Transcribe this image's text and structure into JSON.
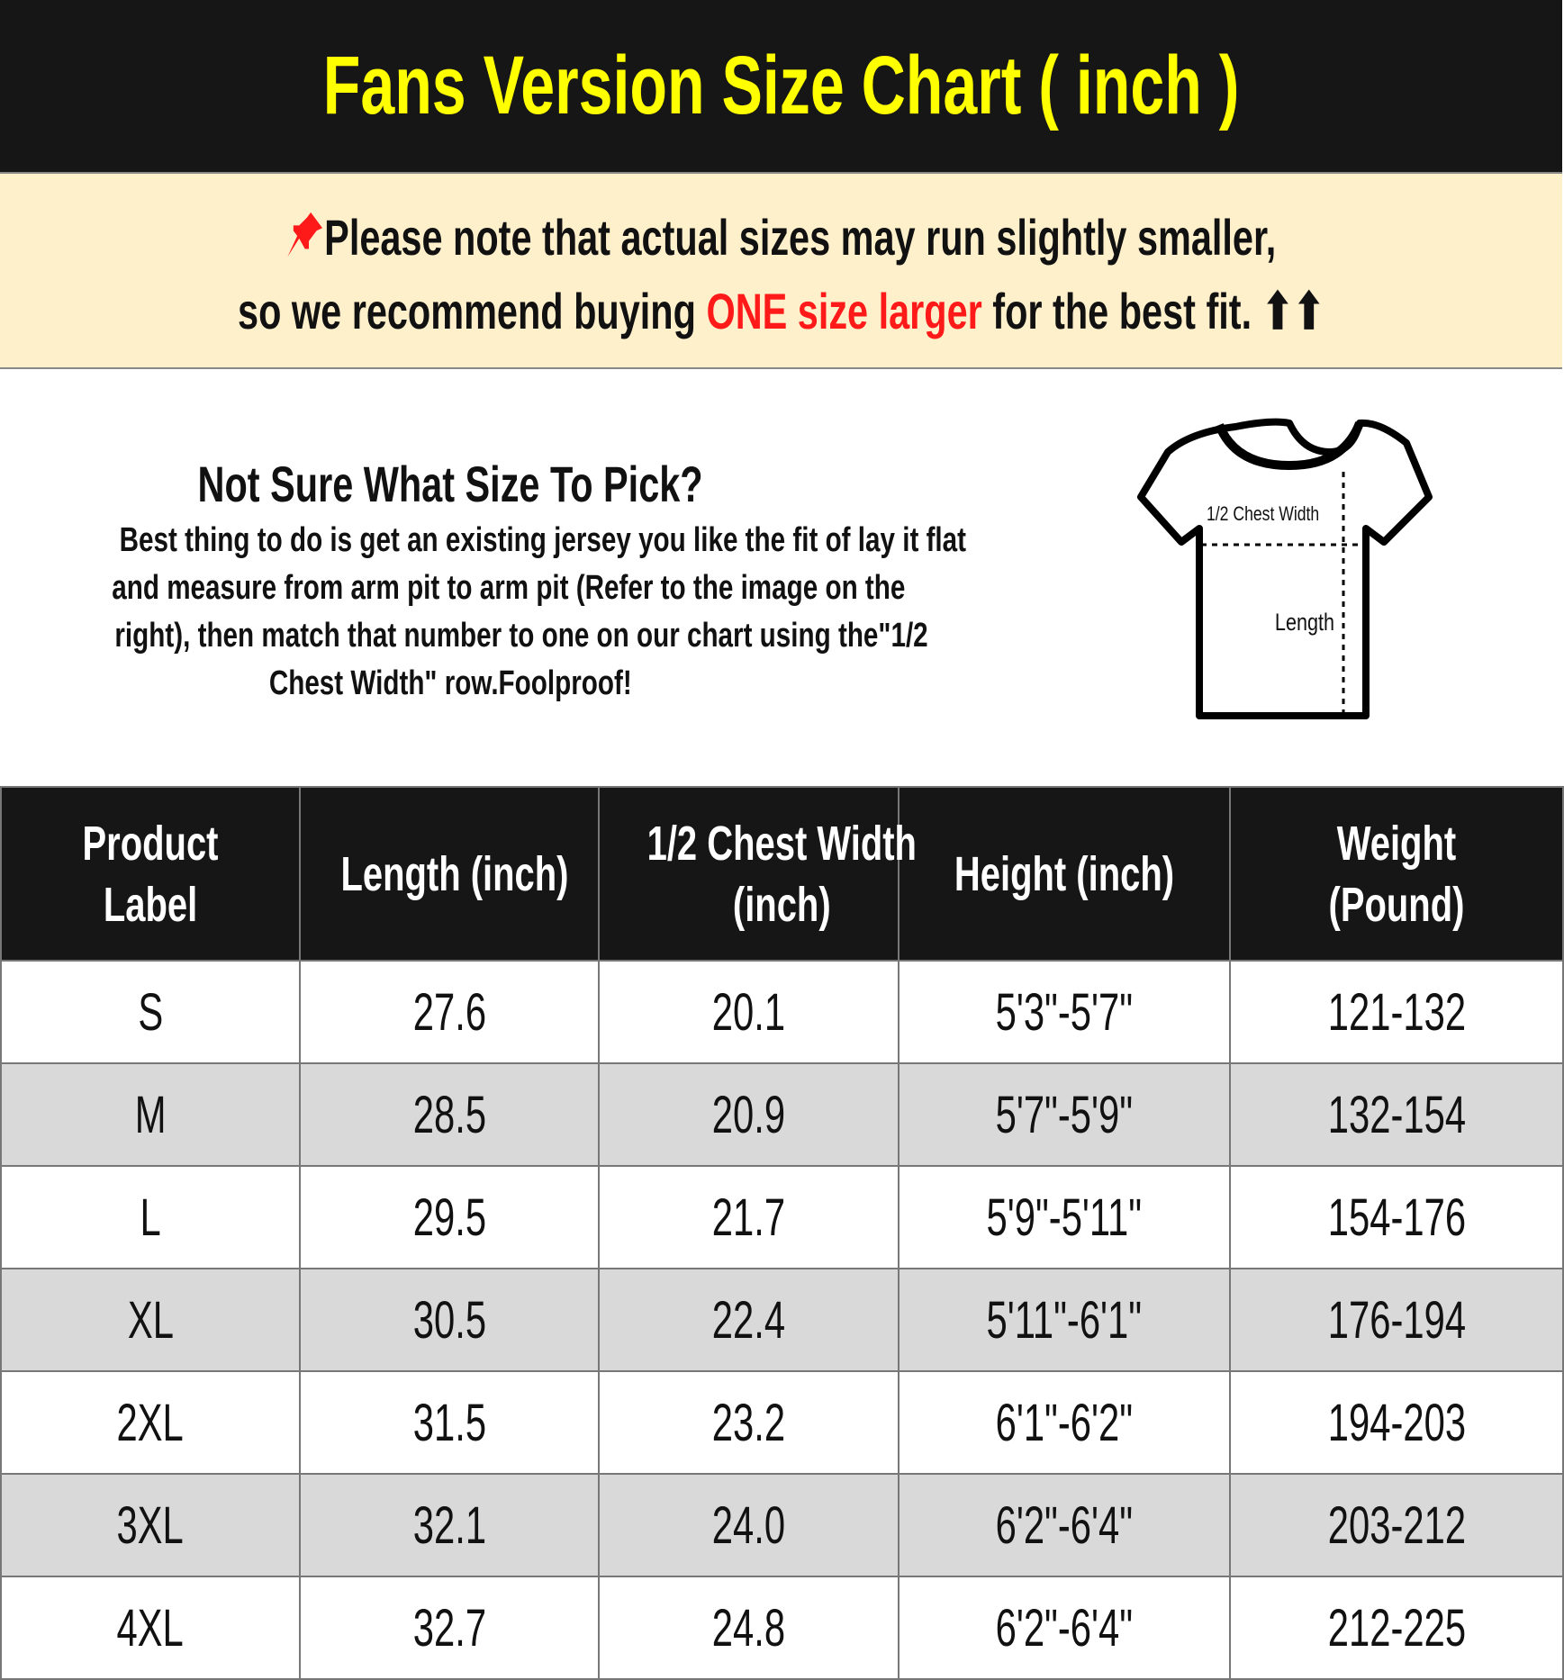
{
  "title": "Fans Version Size Chart ( inch )",
  "notice": {
    "icon": "pushpin-icon",
    "line1": "Please note that actual sizes may run slightly smaller,",
    "line2_before": "so we recommend buying ",
    "line2_highlight": "ONE size larger",
    "line2_after": " for the best fit.",
    "arrows": "⬆⬆",
    "highlight_color": "#ff1a1a"
  },
  "info": {
    "heading": "Not Sure What Size To Pick?",
    "body_lines": [
      "Best thing to do is get an existing jersey you like the fit of lay it flat",
      "and measure from arm pit to arm pit (Refer to the image on the",
      "right), then match that number to one on our chart using the\"1/2",
      "Chest Width\" row.Foolproof!"
    ],
    "diagram": {
      "chest_label": "1/2 Chest Width",
      "length_label": "Length"
    }
  },
  "table": {
    "headers": [
      [
        "Product",
        "Label"
      ],
      [
        "Length (inch)"
      ],
      [
        "1/2 Chest Width",
        "(inch)"
      ],
      [
        "Height (inch)"
      ],
      [
        "Weight",
        "(Pound)"
      ]
    ],
    "rows": [
      [
        "S",
        "27.6",
        "20.1",
        "5'3\"-5'7\"",
        "121-132"
      ],
      [
        "M",
        "28.5",
        "20.9",
        "5'7\"-5'9\"",
        "132-154"
      ],
      [
        "L",
        "29.5",
        "21.7",
        "5'9\"-5'11\"",
        "154-176"
      ],
      [
        "XL",
        "30.5",
        "22.4",
        "5'11\"-6'1\"",
        "176-194"
      ],
      [
        "2XL",
        "31.5",
        "23.2",
        "6'1\"-6'2\"",
        "194-203"
      ],
      [
        "3XL",
        "32.1",
        "24.0",
        "6'2\"-6'4\"",
        "203-212"
      ],
      [
        "4XL",
        "32.7",
        "24.8",
        "6'2\"-6'4\"",
        "212-225"
      ]
    ]
  },
  "colors": {
    "title_bg": "#161616",
    "title_text": "#ffff00",
    "notice_bg": "#fff0cc",
    "alt_row": "#d9d9d9"
  }
}
